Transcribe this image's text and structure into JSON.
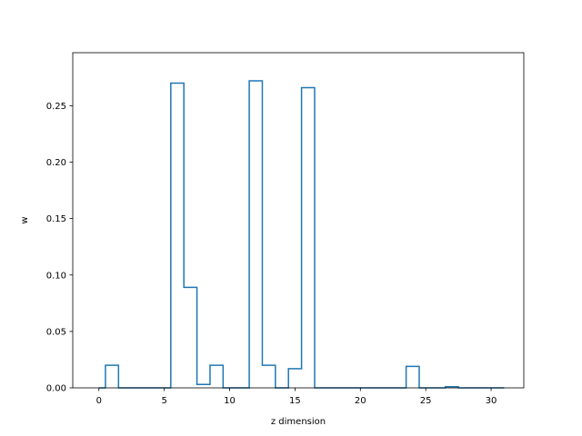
{
  "chart_data": {
    "type": "line",
    "drawstyle": "steps-mid",
    "title": "",
    "xlabel": "z dimension",
    "ylabel": "w",
    "xlim": [
      -2.0,
      32.5
    ],
    "ylim": [
      0.0,
      0.297
    ],
    "grid": false,
    "color": "#1f77b4",
    "x": [
      0,
      1,
      2,
      3,
      4,
      5,
      6,
      7,
      8,
      9,
      10,
      11,
      12,
      13,
      14,
      15,
      16,
      17,
      18,
      19,
      20,
      21,
      22,
      23,
      24,
      25,
      26,
      27,
      28,
      29,
      30,
      31
    ],
    "y": [
      0.0,
      0.02,
      0.0,
      0.0,
      0.0,
      0.0,
      0.27,
      0.089,
      0.003,
      0.02,
      0.0,
      0.0,
      0.272,
      0.02,
      0.0,
      0.017,
      0.266,
      0.0,
      0.0,
      0.0,
      0.0,
      0.0,
      0.0,
      0.0,
      0.019,
      0.0,
      0.0,
      0.001,
      0.0,
      0.0,
      0.0,
      0.0
    ],
    "xticks": [
      0,
      5,
      10,
      15,
      20,
      25,
      30
    ],
    "yticks": [
      0.0,
      0.05,
      0.1,
      0.15,
      0.2,
      0.25
    ],
    "xtick_labels": [
      "0",
      "5",
      "10",
      "15",
      "20",
      "25",
      "30"
    ],
    "ytick_labels": [
      "0.00",
      "0.05",
      "0.10",
      "0.15",
      "0.20",
      "0.25"
    ]
  }
}
